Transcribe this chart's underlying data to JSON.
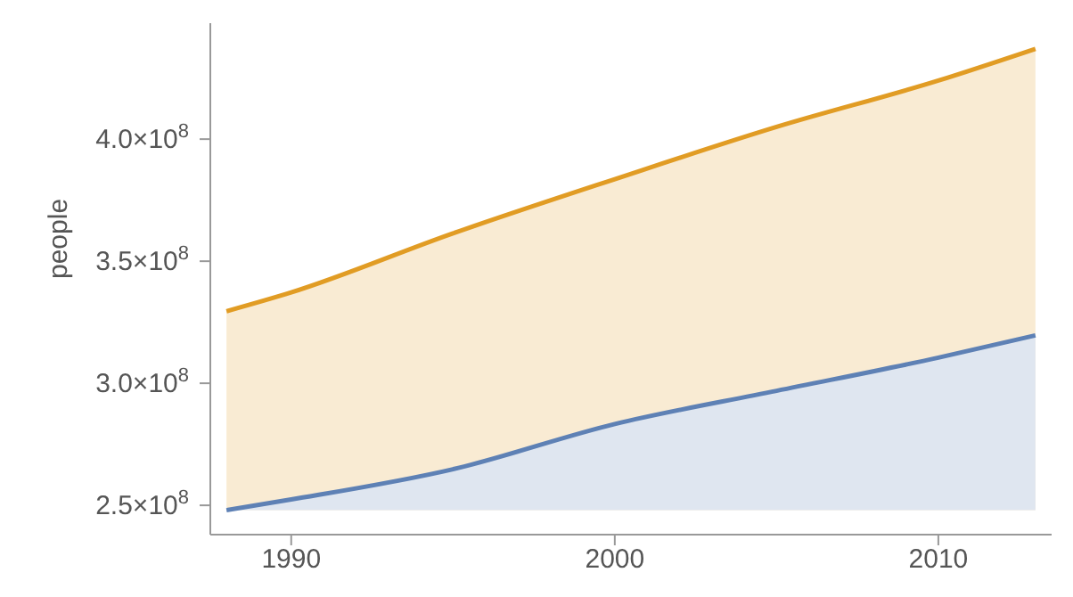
{
  "chart_data": {
    "type": "area",
    "ylabel": "people",
    "x": [
      1988,
      1990,
      1995,
      2000,
      2005,
      2010,
      2013
    ],
    "series": [
      {
        "color": "#e19c24",
        "values": [
          329500000,
          337200000,
          361400000,
          383600000,
          405000000,
          424000000,
          437000000
        ]
      },
      {
        "color": "#5e81b5",
        "values": [
          248000000,
          252400000,
          264800000,
          283300000,
          296900000,
          310500000,
          319600000
        ]
      }
    ],
    "xlim": [
      1987.5,
      2013.5
    ],
    "xticks": [
      1990,
      2000,
      2010
    ],
    "ylim": [
      238000000,
      447500000
    ],
    "yticks": [
      {
        "value": 250000000,
        "label": "2.5×10$^{8}$"
      },
      {
        "value": 300000000,
        "label": "3.0×10$^{8}$"
      },
      {
        "value": 350000000,
        "label": "3.5×10$^{8}$"
      },
      {
        "value": 400000000,
        "label": "4.0×10$^{8}$"
      }
    ],
    "grid": false,
    "legend": false
  }
}
